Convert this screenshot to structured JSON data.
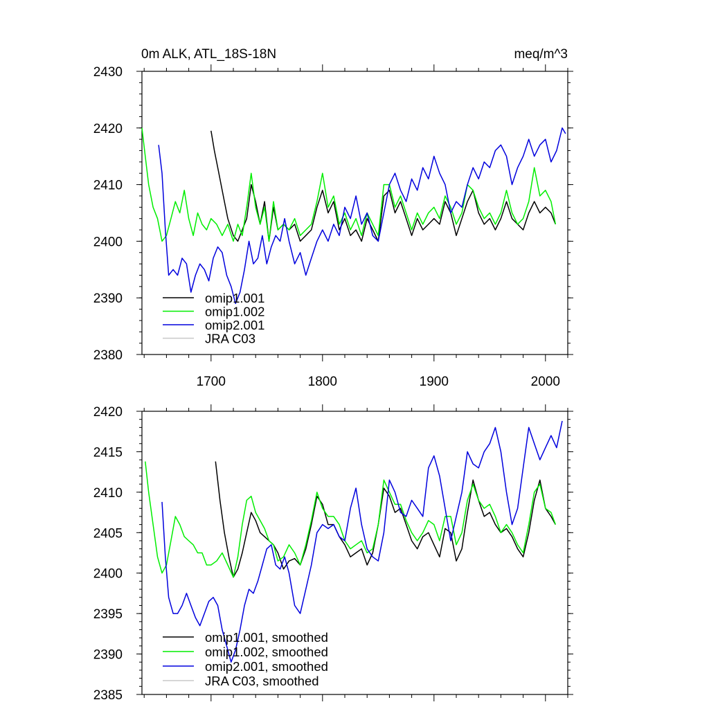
{
  "colors": {
    "omip1_001": "#000000",
    "omip1_002": "#00ee00",
    "omip2_001": "#0000dd",
    "jra_c03": "#c8c8c8"
  },
  "chart_data": [
    {
      "type": "line",
      "title": "0m ALK, ATL_18S-18N",
      "units": "meq/m^3",
      "xlim": [
        1638,
        2020
      ],
      "ylim": [
        2380,
        2430
      ],
      "xticks": [
        1700,
        1800,
        1900,
        2000
      ],
      "yticks": [
        2380,
        2390,
        2400,
        2410,
        2420,
        2430
      ],
      "legend_position": "bottom-left",
      "series": [
        {
          "name": "omip1.001",
          "color_key": "omip1_001",
          "x": [
            1700,
            1703,
            1706,
            1709,
            1712,
            1715,
            1720,
            1724,
            1728,
            1732,
            1736,
            1740,
            1744,
            1748,
            1752,
            1756,
            1760,
            1765,
            1770,
            1775,
            1780,
            1785,
            1790,
            1795,
            1800,
            1805,
            1810,
            1815,
            1820,
            1825,
            1830,
            1835,
            1840,
            1845,
            1850,
            1855,
            1860,
            1865,
            1870,
            1875,
            1880,
            1885,
            1890,
            1895,
            1900,
            1905,
            1910,
            1915,
            1920,
            1925,
            1930,
            1935,
            1940,
            1945,
            1950,
            1955,
            1960,
            1965,
            1970,
            1975,
            1980,
            1985,
            1990,
            1995,
            2000,
            2005,
            2009
          ],
          "y": [
            2419.5,
            2416,
            2413,
            2410,
            2407,
            2404,
            2401,
            2400,
            2402,
            2404,
            2410,
            2407,
            2403,
            2407,
            2400,
            2406,
            2402,
            2403,
            2402,
            2403,
            2400,
            2401,
            2402,
            2406,
            2409,
            2405,
            2407,
            2402,
            2404,
            2401,
            2402,
            2400,
            2404,
            2402,
            2400,
            2408,
            2409,
            2405,
            2407,
            2404,
            2401,
            2404,
            2402,
            2403,
            2404,
            2403,
            2407,
            2405,
            2401,
            2404,
            2407,
            2409,
            2405,
            2403,
            2404,
            2402,
            2404,
            2407,
            2404,
            2403,
            2402,
            2405,
            2407,
            2405,
            2406,
            2405,
            2403
          ]
        },
        {
          "name": "omip1.002",
          "color_key": "omip1_002",
          "x": [
            1638,
            1641,
            1644,
            1648,
            1652,
            1656,
            1660,
            1664,
            1668,
            1672,
            1676,
            1680,
            1684,
            1688,
            1692,
            1696,
            1700,
            1705,
            1710,
            1715,
            1720,
            1724,
            1728,
            1732,
            1736,
            1740,
            1744,
            1748,
            1752,
            1756,
            1760,
            1765,
            1770,
            1775,
            1780,
            1785,
            1790,
            1795,
            1800,
            1805,
            1810,
            1815,
            1820,
            1825,
            1830,
            1835,
            1840,
            1845,
            1850,
            1855,
            1860,
            1865,
            1870,
            1875,
            1880,
            1885,
            1890,
            1895,
            1900,
            1905,
            1910,
            1915,
            1920,
            1925,
            1930,
            1935,
            1940,
            1945,
            1950,
            1955,
            1960,
            1965,
            1970,
            1975,
            1980,
            1985,
            1990,
            1995,
            2000,
            2005,
            2009
          ],
          "y": [
            2420,
            2415,
            2410,
            2406,
            2404,
            2400,
            2401,
            2404,
            2407,
            2405,
            2409,
            2404,
            2401,
            2405,
            2403,
            2402,
            2404,
            2403,
            2401,
            2403,
            2400,
            2403,
            2401,
            2406,
            2412,
            2406,
            2403,
            2406,
            2400,
            2407,
            2402,
            2403,
            2402,
            2404,
            2401,
            2402,
            2403,
            2407,
            2412,
            2406,
            2408,
            2403,
            2405,
            2402,
            2404,
            2401,
            2405,
            2403,
            2401,
            2410,
            2410,
            2406,
            2408,
            2405,
            2402,
            2405,
            2403,
            2405,
            2406,
            2404,
            2408,
            2406,
            2403,
            2405,
            2410,
            2409,
            2406,
            2404,
            2405,
            2403,
            2405,
            2409,
            2405,
            2403,
            2404,
            2407,
            2413,
            2408,
            2409,
            2407,
            2403
          ]
        },
        {
          "name": "omip2.001",
          "color_key": "omip2_001",
          "x": [
            1653,
            1656,
            1659,
            1662,
            1666,
            1670,
            1674,
            1678,
            1682,
            1686,
            1690,
            1694,
            1698,
            1702,
            1706,
            1710,
            1714,
            1718,
            1722,
            1726,
            1730,
            1734,
            1738,
            1742,
            1746,
            1750,
            1754,
            1758,
            1762,
            1766,
            1770,
            1775,
            1780,
            1785,
            1790,
            1795,
            1800,
            1805,
            1810,
            1815,
            1820,
            1825,
            1830,
            1835,
            1840,
            1845,
            1850,
            1855,
            1860,
            1865,
            1870,
            1875,
            1880,
            1885,
            1890,
            1895,
            1900,
            1905,
            1910,
            1915,
            1920,
            1925,
            1930,
            1935,
            1940,
            1945,
            1950,
            1955,
            1960,
            1965,
            1970,
            1975,
            1980,
            1985,
            1990,
            1995,
            2000,
            2005,
            2010,
            2015,
            2018
          ],
          "y": [
            2417,
            2412,
            2402,
            2394,
            2395,
            2394,
            2397,
            2396,
            2391,
            2394,
            2396,
            2395,
            2393,
            2397,
            2399,
            2398,
            2394,
            2392,
            2389,
            2391,
            2395,
            2400,
            2396,
            2397,
            2401,
            2396,
            2399,
            2401,
            2400,
            2404,
            2400,
            2396,
            2398,
            2394,
            2397,
            2400,
            2402,
            2400,
            2403,
            2401,
            2406,
            2404,
            2408,
            2403,
            2405,
            2401,
            2400,
            2405,
            2410,
            2412,
            2409,
            2407,
            2411,
            2409,
            2413,
            2411,
            2415,
            2412,
            2410,
            2405,
            2407,
            2406,
            2410,
            2413,
            2411,
            2414,
            2413,
            2416,
            2417,
            2415,
            2410,
            2413,
            2415,
            2418,
            2415,
            2417,
            2418,
            2414,
            2416,
            2420,
            2419
          ]
        },
        {
          "name": "JRA C03",
          "color_key": "jra_c03",
          "x": [],
          "y": []
        }
      ]
    },
    {
      "type": "line",
      "xlim": [
        1638,
        2020
      ],
      "ylim": [
        2385,
        2420
      ],
      "yticks": [
        2385,
        2390,
        2395,
        2400,
        2405,
        2410,
        2415,
        2420
      ],
      "legend_position": "bottom-left",
      "series": [
        {
          "name": "omip1.001, smoothed",
          "color_key": "omip1_001",
          "x": [
            1704,
            1708,
            1712,
            1716,
            1720,
            1724,
            1728,
            1732,
            1736,
            1740,
            1744,
            1748,
            1752,
            1756,
            1760,
            1765,
            1770,
            1775,
            1780,
            1785,
            1790,
            1795,
            1800,
            1805,
            1810,
            1815,
            1820,
            1825,
            1830,
            1835,
            1840,
            1845,
            1850,
            1855,
            1860,
            1865,
            1870,
            1875,
            1880,
            1885,
            1890,
            1895,
            1900,
            1905,
            1910,
            1915,
            1920,
            1925,
            1930,
            1935,
            1940,
            1945,
            1950,
            1955,
            1960,
            1965,
            1970,
            1975,
            1980,
            1985,
            1990,
            1995,
            2000,
            2005,
            2009
          ],
          "y": [
            2413.8,
            2409,
            2405,
            2402,
            2399.5,
            2400.5,
            2402.5,
            2405,
            2407.5,
            2406.5,
            2405,
            2404.5,
            2404,
            2403.5,
            2402.5,
            2400.5,
            2401.5,
            2401.8,
            2401,
            2403,
            2406,
            2409.5,
            2408.5,
            2406,
            2406,
            2404.5,
            2403.5,
            2402,
            2402.5,
            2403,
            2401,
            2402.5,
            2406,
            2410.5,
            2409.5,
            2407.5,
            2408,
            2406,
            2404,
            2403,
            2404.5,
            2405,
            2403.5,
            2402,
            2405.5,
            2405,
            2401.5,
            2403,
            2407.5,
            2411.5,
            2409,
            2407,
            2407.5,
            2406,
            2405,
            2405.5,
            2404.5,
            2403,
            2402,
            2405,
            2409,
            2411.5,
            2408,
            2407,
            2406
          ]
        },
        {
          "name": "omip1.002, smoothed",
          "color_key": "omip1_002",
          "x": [
            1641,
            1644,
            1648,
            1652,
            1656,
            1660,
            1664,
            1668,
            1672,
            1676,
            1680,
            1684,
            1688,
            1692,
            1696,
            1700,
            1705,
            1710,
            1715,
            1720,
            1724,
            1728,
            1732,
            1736,
            1740,
            1744,
            1748,
            1752,
            1756,
            1760,
            1765,
            1770,
            1775,
            1780,
            1785,
            1790,
            1795,
            1800,
            1805,
            1810,
            1815,
            1820,
            1825,
            1830,
            1835,
            1840,
            1845,
            1850,
            1855,
            1860,
            1865,
            1870,
            1875,
            1880,
            1885,
            1890,
            1895,
            1900,
            1905,
            1910,
            1915,
            1920,
            1925,
            1930,
            1935,
            1940,
            1945,
            1950,
            1955,
            1960,
            1965,
            1970,
            1975,
            1980,
            1985,
            1990,
            1995,
            2000,
            2005,
            2009
          ],
          "y": [
            2413.8,
            2410,
            2406,
            2402,
            2400,
            2401,
            2404,
            2407,
            2406,
            2404.5,
            2404,
            2403.5,
            2402.5,
            2402.5,
            2401,
            2401,
            2401.5,
            2402.5,
            2401,
            2399.5,
            2402,
            2406,
            2409,
            2409.5,
            2407.5,
            2406.5,
            2405.5,
            2404,
            2403.5,
            2401.5,
            2402,
            2403.5,
            2402.5,
            2401,
            2403.5,
            2406.5,
            2410,
            2408,
            2407,
            2407,
            2406,
            2404,
            2403,
            2403.5,
            2404,
            2402.5,
            2403,
            2406,
            2411.5,
            2410,
            2408.5,
            2408.5,
            2406.5,
            2405,
            2404,
            2405,
            2406.5,
            2406,
            2404,
            2407,
            2407,
            2403.5,
            2405,
            2409,
            2411,
            2409,
            2408,
            2408.5,
            2407,
            2405,
            2406,
            2405,
            2403.5,
            2402.5,
            2406,
            2410,
            2411,
            2408,
            2407.5,
            2406
          ]
        },
        {
          "name": "omip2.001, smoothed",
          "color_key": "omip2_001",
          "x": [
            1656,
            1659,
            1662,
            1666,
            1670,
            1674,
            1678,
            1682,
            1686,
            1690,
            1694,
            1698,
            1702,
            1706,
            1710,
            1714,
            1718,
            1722,
            1726,
            1730,
            1734,
            1738,
            1742,
            1746,
            1750,
            1754,
            1758,
            1762,
            1766,
            1770,
            1775,
            1780,
            1785,
            1790,
            1795,
            1800,
            1805,
            1810,
            1815,
            1820,
            1825,
            1830,
            1835,
            1840,
            1845,
            1850,
            1855,
            1860,
            1865,
            1870,
            1875,
            1880,
            1885,
            1890,
            1895,
            1900,
            1905,
            1910,
            1915,
            1920,
            1925,
            1930,
            1935,
            1940,
            1945,
            1950,
            1955,
            1960,
            1965,
            1970,
            1975,
            1980,
            1985,
            1990,
            1995,
            2000,
            2005,
            2010,
            2015
          ],
          "y": [
            2408.8,
            2402,
            2397,
            2395,
            2395,
            2396,
            2397.5,
            2396,
            2394.5,
            2393.5,
            2395,
            2396.5,
            2397,
            2396,
            2393,
            2391,
            2389,
            2390.5,
            2393,
            2396,
            2398,
            2397.5,
            2399,
            2401,
            2403,
            2403.5,
            2401,
            2400.5,
            2402,
            2400,
            2396,
            2395,
            2398,
            2401,
            2405,
            2406,
            2405.5,
            2406,
            2404.5,
            2404,
            2408,
            2410.5,
            2406,
            2403,
            2402,
            2401.5,
            2405,
            2411.5,
            2410,
            2407.5,
            2407,
            2409,
            2408,
            2407,
            2413,
            2414.5,
            2412,
            2408,
            2404,
            2407,
            2410,
            2415,
            2413.5,
            2413,
            2415,
            2416,
            2418,
            2415,
            2410,
            2406,
            2408,
            2413,
            2418,
            2416,
            2414,
            2415.5,
            2417,
            2415.5,
            2418.8
          ]
        },
        {
          "name": "JRA C03, smoothed",
          "color_key": "jra_c03",
          "x": [],
          "y": []
        }
      ]
    }
  ]
}
